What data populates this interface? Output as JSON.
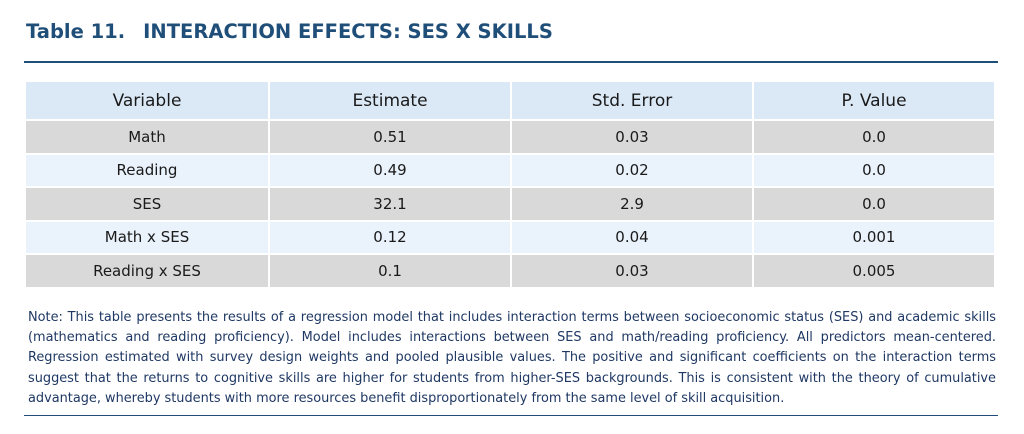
{
  "table_number": "Table 11.",
  "title": "INTERACTION EFFECTS: SES X SKILLS",
  "columns": [
    "Variable",
    "Estimate",
    "Std. Error",
    "P. Value"
  ],
  "rows": [
    [
      "Math",
      "0.51",
      "0.03",
      "0.0"
    ],
    [
      "Reading",
      "0.49",
      "0.02",
      "0.0"
    ],
    [
      "SES",
      "32.1",
      "2.9",
      "0.0"
    ],
    [
      "Math x SES",
      "0.12",
      "0.04",
      "0.001"
    ],
    [
      "Reading x SES",
      "0.1",
      "0.03",
      "0.005"
    ]
  ],
  "note": "Note: This table presents the results of a regression model that includes interaction terms between socioeconomic status (SES) and academic skills (mathematics and reading proficiency). Model includes interactions between SES and math/reading proficiency. All predictors mean-centered. Regression estimated with survey design weights and pooled plausible values. The positive and significant coefficients on the interaction terms suggest that the returns to cognitive skills are higher for students from higher-SES backgrounds. This is consistent with the theory of cumulative advantage, whereby students with more resources benefit disproportionately from the same level of skill acquisition.",
  "colors": {
    "title": "#1f4e79",
    "header_bg": "#dbe9f7",
    "row_odd_bg": "#d9d9d9",
    "row_even_bg": "#eaf2fb",
    "note_text": "#1f3864"
  }
}
